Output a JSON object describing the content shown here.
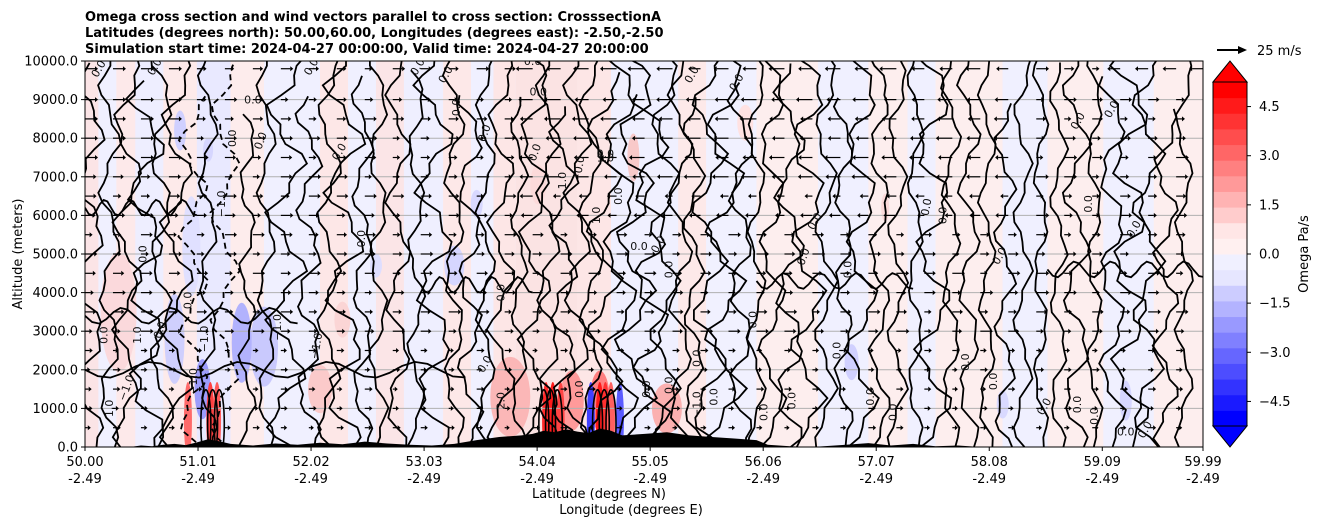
{
  "chart_data": {
    "type": "heatmap",
    "title_lines": [
      "Omega cross section and wind vectors parallel to cross section: CrosssectionA",
      "Latitudes (degrees north): 50.00,60.00, Longitudes (degrees east): -2.50,-2.50",
      "Simulation start time: 2024-04-27 00:00:00, Valid time: 2024-04-27 20:00:00"
    ],
    "ylabel": "Altitude (meters)",
    "xlabel_lines": [
      "Latitude (degrees N)",
      "Longitude (degrees E)"
    ],
    "ylim": [
      0,
      10000
    ],
    "xlim": [
      50.0,
      59.99
    ],
    "y_ticks": [
      "0.0",
      "1000.0",
      "2000.0",
      "3000.0",
      "4000.0",
      "5000.0",
      "6000.0",
      "7000.0",
      "8000.0",
      "9000.0",
      "10000.0"
    ],
    "x_ticks": [
      {
        "lat": "50.00",
        "lon": "-2.49"
      },
      {
        "lat": "51.01",
        "lon": "-2.49"
      },
      {
        "lat": "52.02",
        "lon": "-2.49"
      },
      {
        "lat": "53.03",
        "lon": "-2.49"
      },
      {
        "lat": "54.04",
        "lon": "-2.49"
      },
      {
        "lat": "55.05",
        "lon": "-2.49"
      },
      {
        "lat": "56.06",
        "lon": "-2.49"
      },
      {
        "lat": "57.07",
        "lon": "-2.49"
      },
      {
        "lat": "58.08",
        "lon": "-2.49"
      },
      {
        "lat": "59.09",
        "lon": "-2.49"
      },
      {
        "lat": "59.99",
        "lon": "-2.49"
      }
    ],
    "colorbar": {
      "label": "Omega Pa/s",
      "range": [
        -5.25,
        5.25
      ],
      "extend": "both",
      "ticks": [
        "4.5",
        "3.0",
        "1.5",
        "0.0",
        "−1.5",
        "−3.0",
        "−4.5"
      ],
      "colors": [
        "#0000ff",
        "#1a1aff",
        "#3333ff",
        "#4d4dff",
        "#6666ff",
        "#8080ff",
        "#9999ff",
        "#b3b3ff",
        "#ccccff",
        "#e6e6ff",
        "#f0f0ff",
        "#fff0f0",
        "#ffe6e6",
        "#ffcccc",
        "#ffb3b3",
        "#ff9999",
        "#ff8080",
        "#ff6666",
        "#ff4d4d",
        "#ff3333",
        "#ff1a1a",
        "#ff0000"
      ]
    },
    "quiver_key": {
      "label": "25 m/s",
      "speed_ms": 25
    },
    "contour_label_texts": [
      "0.0",
      "1.0",
      "−1.0",
      "2.0",
      "−2.0"
    ],
    "colors": {
      "positive": "#ff0000",
      "negative": "#0000ff",
      "contour": "#000000",
      "grid": "#b0b0b0",
      "terrain": "#000000"
    }
  }
}
